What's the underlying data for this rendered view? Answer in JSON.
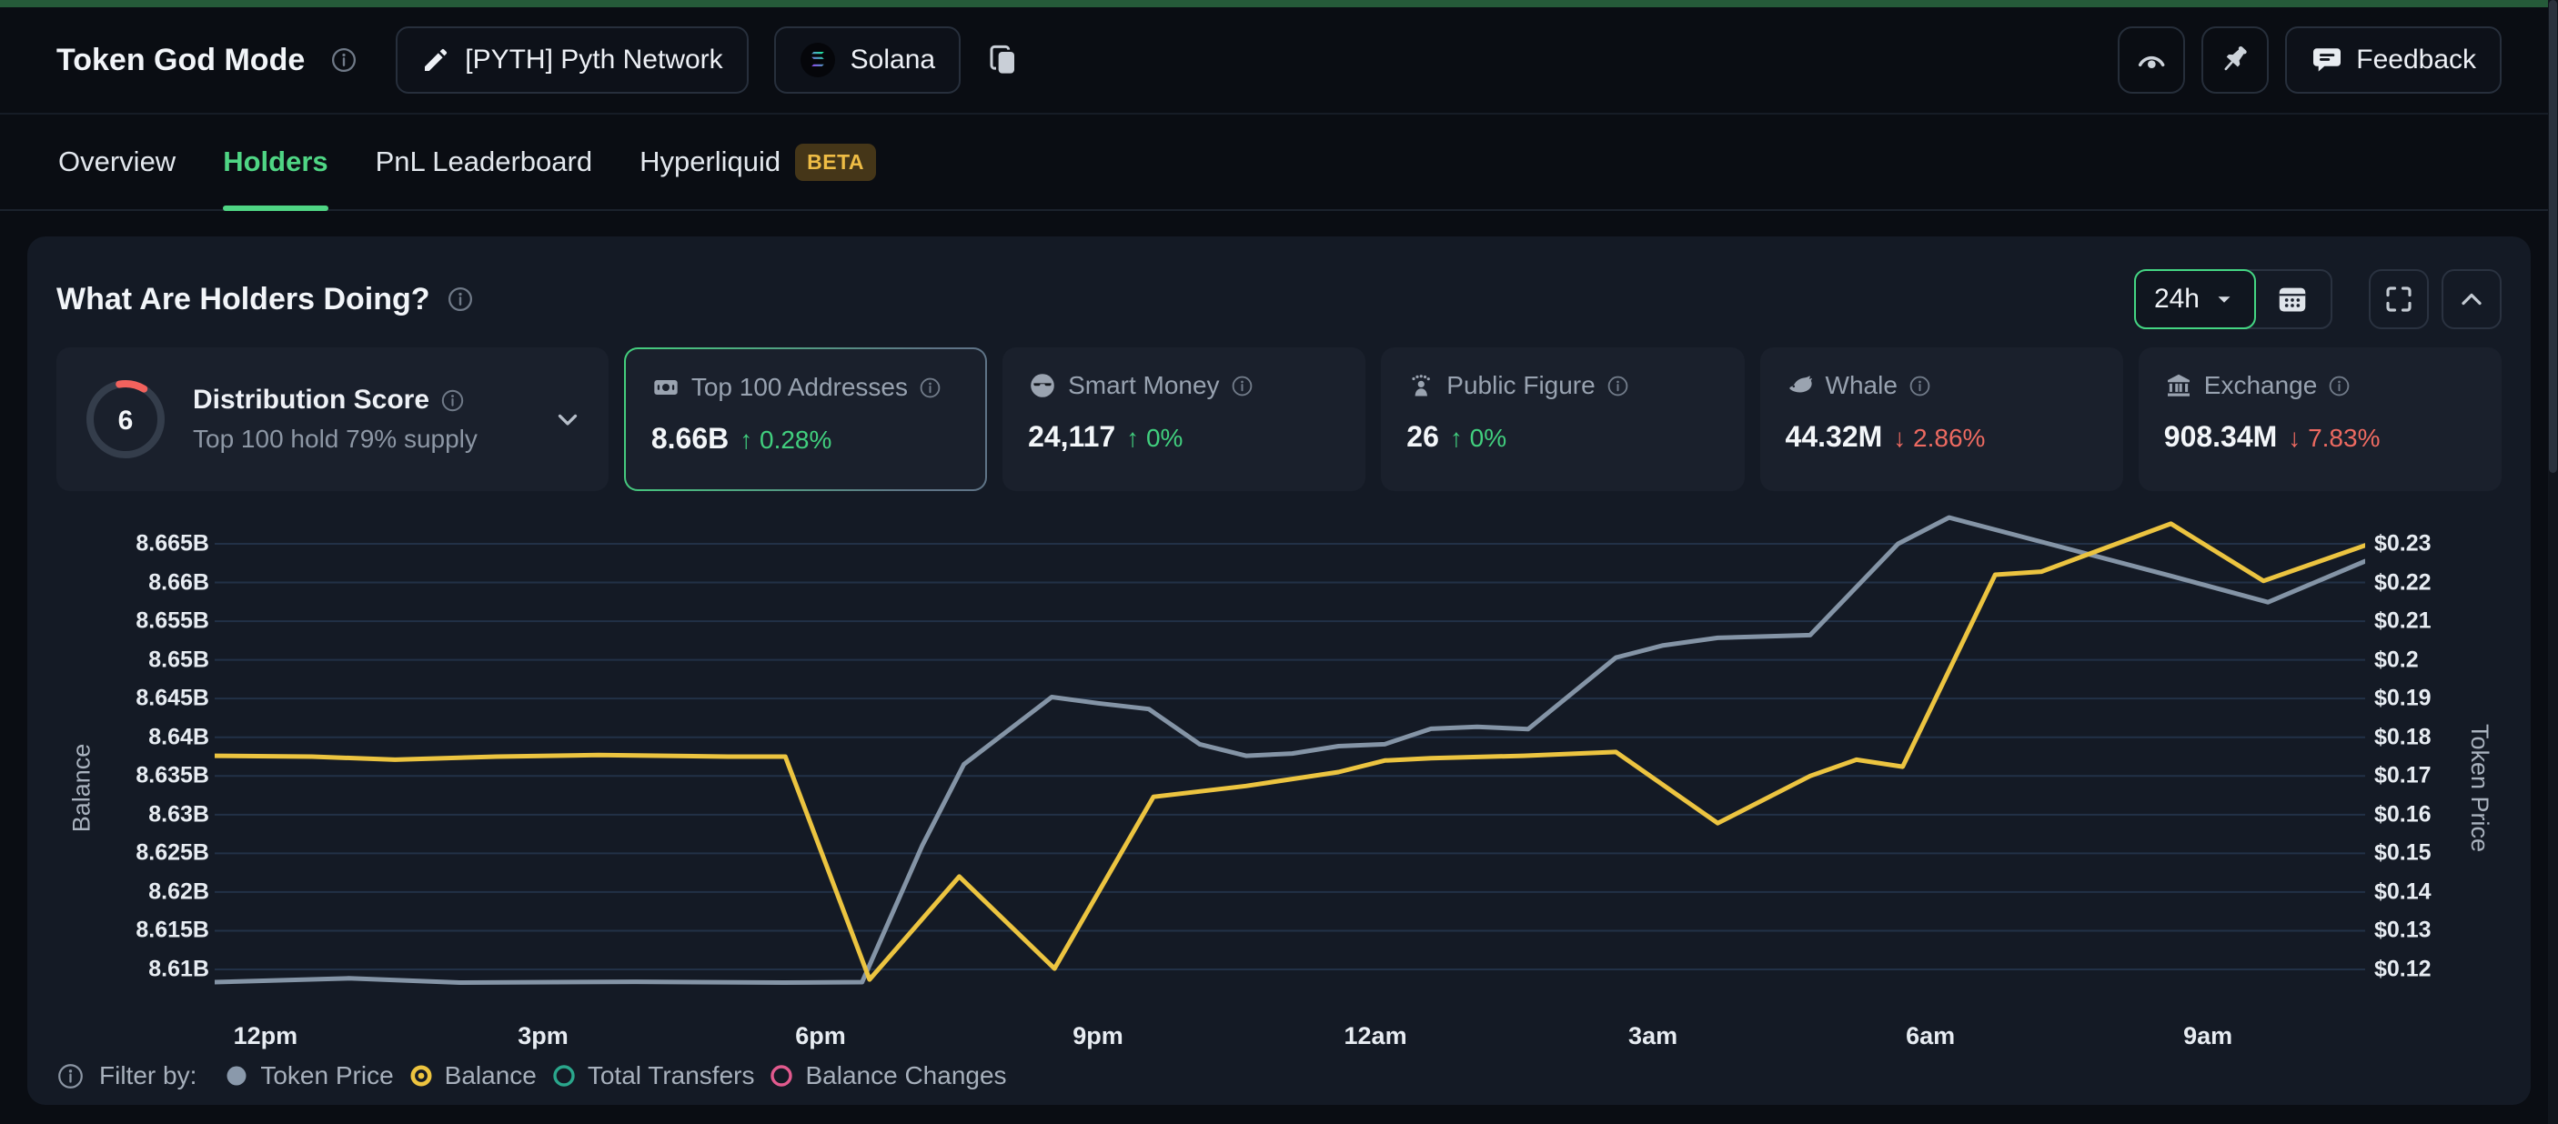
{
  "header": {
    "title": "Token God Mode",
    "token_button": "[PYTH] Pyth Network",
    "chain_button": "Solana",
    "feedback_button": "Feedback"
  },
  "tabs": {
    "items": [
      {
        "label": "Overview",
        "active": false
      },
      {
        "label": "Holders",
        "active": true
      },
      {
        "label": "PnL Leaderboard",
        "active": false
      },
      {
        "label": "Hyperliquid",
        "active": false,
        "badge": "BETA"
      }
    ]
  },
  "panel": {
    "title": "What Are Holders Doing?",
    "timeframe": "24h"
  },
  "stats": {
    "distribution": {
      "score": "6",
      "label": "Distribution Score",
      "sub": "Top 100 hold 79% supply"
    },
    "cards": [
      {
        "label": "Top 100 Addresses",
        "value": "8.66B",
        "arrow": "↑",
        "change": "0.28%",
        "dir": "up",
        "selected": true
      },
      {
        "label": "Smart Money",
        "value": "24,117",
        "arrow": "↑",
        "change": "0%",
        "dir": "up",
        "selected": false
      },
      {
        "label": "Public Figure",
        "value": "26",
        "arrow": "↑",
        "change": "0%",
        "dir": "up",
        "selected": false
      },
      {
        "label": "Whale",
        "value": "44.32M",
        "arrow": "↓",
        "change": "2.86%",
        "dir": "down",
        "selected": false
      },
      {
        "label": "Exchange",
        "value": "908.34M",
        "arrow": "↓",
        "change": "7.83%",
        "dir": "down",
        "selected": false
      }
    ]
  },
  "chart_data": {
    "type": "line",
    "x_axis": {
      "tick_labels": [
        "12pm",
        "3pm",
        "6pm",
        "9pm",
        "12am",
        "3am",
        "6am",
        "9am"
      ],
      "tick_hours": [
        0,
        3,
        6,
        9,
        12,
        15,
        18,
        21
      ],
      "range_hours": [
        -0.55,
        22.7
      ],
      "grid": false
    },
    "left_axis": {
      "title": "Balance",
      "tick_labels": [
        "8.665B",
        "8.66B",
        "8.655B",
        "8.65B",
        "8.645B",
        "8.64B",
        "8.635B",
        "8.63B",
        "8.625B",
        "8.62B",
        "8.615B",
        "8.61B"
      ],
      "min": 8.61,
      "max": 8.665,
      "unit": "B",
      "grid": true
    },
    "right_axis": {
      "title": "Token Price",
      "tick_labels": [
        "$0.23",
        "$0.22",
        "$0.21",
        "$0.2",
        "$0.19",
        "$0.18",
        "$0.17",
        "$0.16",
        "$0.15",
        "$0.14",
        "$0.13",
        "$0.12"
      ],
      "min": 0.12,
      "max": 0.23,
      "unit": "$"
    },
    "series": [
      {
        "name": "Token Price",
        "axis": "right",
        "color": "#8494a6",
        "points": [
          [
            -0.55,
            0.1167
          ],
          [
            0.9,
            0.1177
          ],
          [
            2.1,
            0.1166
          ],
          [
            4.0,
            0.1168
          ],
          [
            5.6,
            0.1166
          ],
          [
            6.45,
            0.1167
          ],
          [
            7.1,
            0.152
          ],
          [
            7.55,
            0.173
          ],
          [
            8.5,
            0.1904
          ],
          [
            9.0,
            0.1888
          ],
          [
            9.55,
            0.1873
          ],
          [
            10.1,
            0.1782
          ],
          [
            10.6,
            0.1752
          ],
          [
            11.1,
            0.1758
          ],
          [
            11.6,
            0.1777
          ],
          [
            12.1,
            0.1782
          ],
          [
            12.6,
            0.1822
          ],
          [
            13.1,
            0.1827
          ],
          [
            13.65,
            0.1821
          ],
          [
            14.6,
            0.2006
          ],
          [
            15.1,
            0.2037
          ],
          [
            15.7,
            0.2057
          ],
          [
            16.7,
            0.2064
          ],
          [
            17.65,
            0.23
          ],
          [
            18.2,
            0.2368
          ],
          [
            19.6,
            0.228
          ],
          [
            20.6,
            0.2217
          ],
          [
            21.65,
            0.2149
          ],
          [
            22.7,
            0.2255
          ]
        ]
      },
      {
        "name": "Balance",
        "axis": "left",
        "color": "#ecc440",
        "points": [
          [
            -0.55,
            8.6376
          ],
          [
            0.5,
            8.6375
          ],
          [
            1.4,
            8.6371
          ],
          [
            2.5,
            8.6375
          ],
          [
            3.6,
            8.6377
          ],
          [
            5.0,
            8.6375
          ],
          [
            5.62,
            8.6375
          ],
          [
            6.53,
            8.6087
          ],
          [
            7.5,
            8.622
          ],
          [
            8.53,
            8.6101
          ],
          [
            9.6,
            8.6323
          ],
          [
            10.6,
            8.6337
          ],
          [
            11.6,
            8.6355
          ],
          [
            12.1,
            8.637
          ],
          [
            12.6,
            8.6373
          ],
          [
            13.6,
            8.6376
          ],
          [
            14.6,
            8.6381
          ],
          [
            15.7,
            8.6289
          ],
          [
            16.7,
            8.635
          ],
          [
            17.2,
            8.6371
          ],
          [
            17.7,
            8.6362
          ],
          [
            18.7,
            8.661
          ],
          [
            19.2,
            8.6614
          ],
          [
            20.6,
            8.6676
          ],
          [
            21.6,
            8.6602
          ],
          [
            22.7,
            8.6648
          ]
        ]
      }
    ],
    "title": "What Are Holders Doing?",
    "legend_position": "bottom"
  },
  "legend": {
    "info_label": "Filter by:",
    "items": [
      {
        "label": "Token Price",
        "color": "#8a99ab",
        "style": "filled"
      },
      {
        "label": "Balance",
        "color": "#edc43f",
        "style": "selected"
      },
      {
        "label": "Total Transfers",
        "color": "#2aa78c",
        "style": "ring"
      },
      {
        "label": "Balance Changes",
        "color": "#e25a8e",
        "style": "ring"
      }
    ]
  },
  "colors": {
    "accent_green": "#4fd584",
    "down_red": "#ed6a61",
    "balance_line": "#ecc440",
    "price_line": "#8494a6",
    "panel_bg": "#141a25",
    "card_bg": "#1a202c",
    "page_bg": "#0a0d13",
    "top_loading_bar": "#255a39",
    "beta_text": "#eebc45"
  }
}
